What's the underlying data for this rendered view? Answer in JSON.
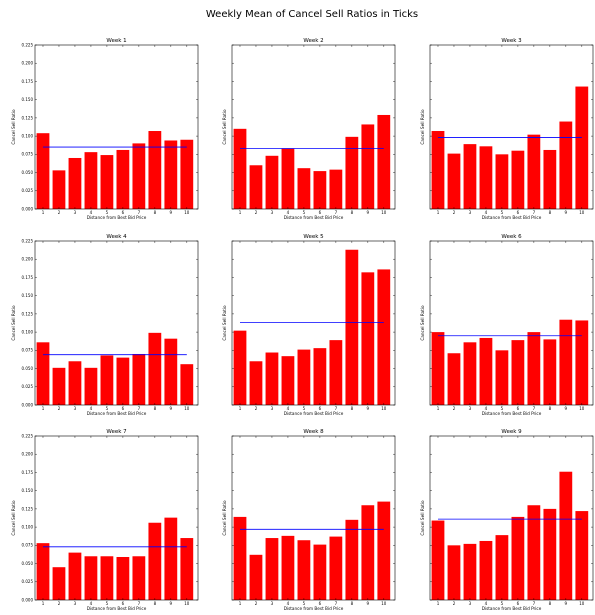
{
  "chart_data": {
    "type": "bar",
    "title": "Weekly Mean of Cancel Sell Ratios in Ticks",
    "xlabel": "Distance from Best Bid Price",
    "ylabel": "Cancel Sell Ratio",
    "categories": [
      "1",
      "2",
      "3",
      "4",
      "5",
      "6",
      "7",
      "8",
      "9",
      "10"
    ],
    "ylim": [
      0,
      0.225
    ],
    "yticks": [
      "0.000",
      "0.025",
      "0.050",
      "0.075",
      "0.100",
      "0.125",
      "0.150",
      "0.175",
      "0.200",
      "0.225"
    ],
    "bar_color": "#ff0000",
    "mean_line_color": "#0000ff",
    "grid": false,
    "panels": [
      {
        "title": "Week 1",
        "values": [
          0.104,
          0.053,
          0.07,
          0.078,
          0.074,
          0.081,
          0.09,
          0.107,
          0.094,
          0.095
        ],
        "mean": 0.085
      },
      {
        "title": "Week 2",
        "values": [
          0.11,
          0.06,
          0.073,
          0.083,
          0.056,
          0.052,
          0.054,
          0.099,
          0.116,
          0.129
        ],
        "mean": 0.083
      },
      {
        "title": "Week 3",
        "values": [
          0.107,
          0.076,
          0.089,
          0.086,
          0.075,
          0.08,
          0.102,
          0.081,
          0.12,
          0.168
        ],
        "mean": 0.098
      },
      {
        "title": "Week 4",
        "values": [
          0.086,
          0.051,
          0.06,
          0.051,
          0.068,
          0.065,
          0.07,
          0.099,
          0.091,
          0.056
        ],
        "mean": 0.069
      },
      {
        "title": "Week 5",
        "values": [
          0.102,
          0.06,
          0.072,
          0.067,
          0.076,
          0.078,
          0.089,
          0.213,
          0.182,
          0.186
        ],
        "mean": 0.113
      },
      {
        "title": "Week 6",
        "values": [
          0.1,
          0.071,
          0.086,
          0.092,
          0.075,
          0.089,
          0.1,
          0.09,
          0.117,
          0.116
        ],
        "mean": 0.095
      },
      {
        "title": "Week 7",
        "values": [
          0.078,
          0.045,
          0.065,
          0.06,
          0.06,
          0.059,
          0.06,
          0.106,
          0.113,
          0.085
        ],
        "mean": 0.073
      },
      {
        "title": "Week 8",
        "values": [
          0.114,
          0.062,
          0.085,
          0.088,
          0.082,
          0.076,
          0.087,
          0.11,
          0.13,
          0.135
        ],
        "mean": 0.097
      },
      {
        "title": "Week 9",
        "values": [
          0.109,
          0.075,
          0.077,
          0.081,
          0.089,
          0.114,
          0.13,
          0.125,
          0.176,
          0.122
        ],
        "mean": 0.111
      }
    ]
  }
}
